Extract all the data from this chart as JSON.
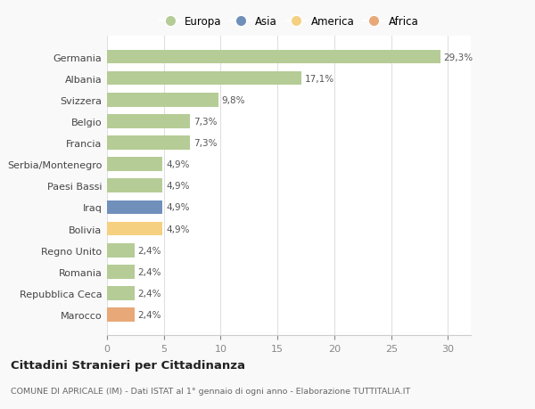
{
  "countries": [
    "Germania",
    "Albania",
    "Svizzera",
    "Belgio",
    "Francia",
    "Serbia/Montenegro",
    "Paesi Bassi",
    "Iraq",
    "Bolivia",
    "Regno Unito",
    "Romania",
    "Repubblica Ceca",
    "Marocco"
  ],
  "values": [
    29.3,
    17.1,
    9.8,
    7.3,
    7.3,
    4.9,
    4.9,
    4.9,
    4.9,
    2.4,
    2.4,
    2.4,
    2.4
  ],
  "labels": [
    "29,3%",
    "17,1%",
    "9,8%",
    "7,3%",
    "7,3%",
    "4,9%",
    "4,9%",
    "4,9%",
    "4,9%",
    "2,4%",
    "2,4%",
    "2,4%",
    "2,4%"
  ],
  "continents": [
    "Europa",
    "Europa",
    "Europa",
    "Europa",
    "Europa",
    "Europa",
    "Europa",
    "Asia",
    "America",
    "Europa",
    "Europa",
    "Europa",
    "Africa"
  ],
  "colors": {
    "Europa": "#b5cc96",
    "Asia": "#7090bb",
    "America": "#f5d080",
    "Africa": "#e8a878"
  },
  "xlim": [
    0,
    32
  ],
  "xticks": [
    0,
    5,
    10,
    15,
    20,
    25,
    30
  ],
  "title": "Cittadini Stranieri per Cittadinanza",
  "subtitle": "COMUNE DI APRICALE (IM) - Dati ISTAT al 1° gennaio di ogni anno - Elaborazione TUTTITALIA.IT",
  "background_color": "#f9f9f9",
  "bar_background": "#ffffff",
  "legend_order": [
    "Europa",
    "Asia",
    "America",
    "Africa"
  ]
}
